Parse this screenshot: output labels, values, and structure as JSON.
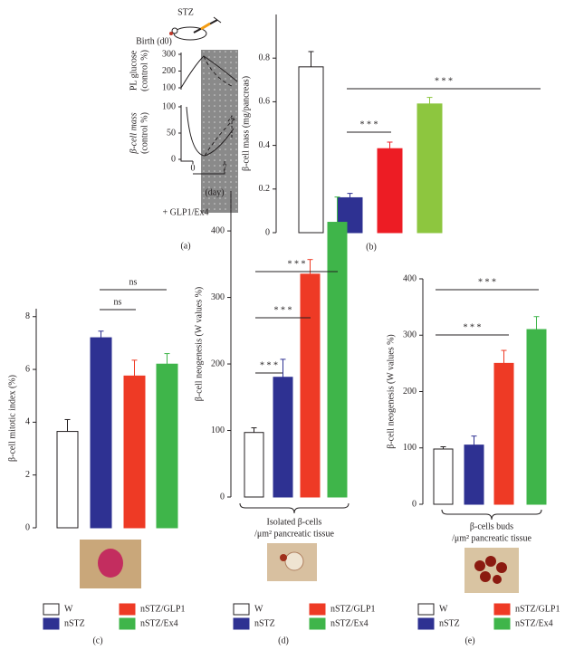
{
  "chart_data": [
    {
      "type": "bar",
      "label": "(b)",
      "y_label": "β-cell mass (mg/pancreas)",
      "ylim": [
        0,
        1
      ],
      "yticks": [
        0,
        0.2,
        0.4,
        0.6,
        0.8
      ],
      "series": [
        {
          "color": "#ffffff",
          "values": [
            0.76
          ],
          "errors": [
            0.07
          ]
        },
        {
          "color": "#2e3192",
          "values": [
            0.16
          ],
          "errors": [
            0.02
          ]
        },
        {
          "color": "#ed1c24",
          "values": [
            0.385
          ],
          "errors": [
            0.03
          ]
        },
        {
          "color": "#8dc63f",
          "values": [
            0.59
          ],
          "errors": [
            0.03
          ]
        }
      ],
      "annotations": [
        "* * *",
        "* * *"
      ]
    },
    {
      "type": "bar",
      "label": "(c)",
      "y_label": "β-cell mitotic index (%)",
      "ylim": [
        0,
        8.3
      ],
      "yticks": [
        0,
        2,
        4,
        6,
        8
      ],
      "series": [
        {
          "name": "W",
          "color": "#ffffff",
          "values": [
            3.65
          ],
          "errors": [
            0.45
          ]
        },
        {
          "name": "nSTZ",
          "color": "#2e3192",
          "values": [
            7.2
          ],
          "errors": [
            0.25
          ]
        },
        {
          "name": "nSTZ/GLP1",
          "color": "#ee3a25",
          "values": [
            5.75
          ],
          "errors": [
            0.6
          ]
        },
        {
          "name": "nSTZ/Ex4",
          "color": "#3fb54a",
          "values": [
            6.2
          ],
          "errors": [
            0.4
          ]
        }
      ],
      "annotations": [
        "ns",
        "ns"
      ]
    },
    {
      "type": "bar",
      "label": "(d)",
      "y_label": "β-cell neogenesis (W values %)",
      "x_label": [
        "Isolated β-cells",
        "/μm² pancreatic tissue"
      ],
      "ylim": [
        0,
        460
      ],
      "yticks": [
        0,
        100,
        200,
        300,
        400
      ],
      "series": [
        {
          "name": "W",
          "color": "#ffffff",
          "values": [
            97
          ],
          "errors": [
            7
          ]
        },
        {
          "name": "nSTZ",
          "color": "#2e3192",
          "values": [
            180
          ],
          "errors": [
            27
          ]
        },
        {
          "name": "nSTZ/GLP1",
          "color": "#ee3a25",
          "values": [
            335
          ],
          "errors": [
            22
          ]
        },
        {
          "name": "nSTZ/Ex4",
          "color": "#3fb54a",
          "values": [
            413
          ],
          "errors": [
            38
          ]
        }
      ],
      "annotations": [
        "* * *",
        "* * *",
        "* * *"
      ]
    },
    {
      "type": "bar",
      "label": "(e)",
      "y_label": "β-cell neogenesis (W values %)",
      "x_label": [
        "β-cells buds",
        "/μm² pancreatic tissue"
      ],
      "ylim": [
        0,
        400
      ],
      "yticks": [
        0,
        100,
        200,
        300,
        400
      ],
      "series": [
        {
          "name": "W",
          "color": "#ffffff",
          "values": [
            98
          ],
          "errors": [
            4
          ]
        },
        {
          "name": "nSTZ",
          "color": "#2e3192",
          "values": [
            105
          ],
          "errors": [
            16
          ]
        },
        {
          "name": "nSTZ/GLP1",
          "color": "#ee3a25",
          "values": [
            250
          ],
          "errors": [
            23
          ]
        },
        {
          "name": "nSTZ/Ex4",
          "color": "#3fb54a",
          "values": [
            310
          ],
          "errors": [
            23
          ]
        }
      ],
      "annotations": [
        "* * *",
        "* * *"
      ]
    }
  ],
  "schematic": {
    "label": "(a)",
    "drug": "STZ",
    "birth": "Birth (d0)",
    "glucose_axis": {
      "label": [
        "PL glucose",
        "(control %)"
      ],
      "ticks": [
        100,
        200,
        300
      ]
    },
    "mass_axis": {
      "label": [
        "β-cell mass",
        "(control %)"
      ],
      "ticks": [
        0,
        50,
        100
      ]
    },
    "day_ticks": [
      0,
      7
    ],
    "day_label": "(day)",
    "treatment": "+ GLP1/Ex4"
  }
}
